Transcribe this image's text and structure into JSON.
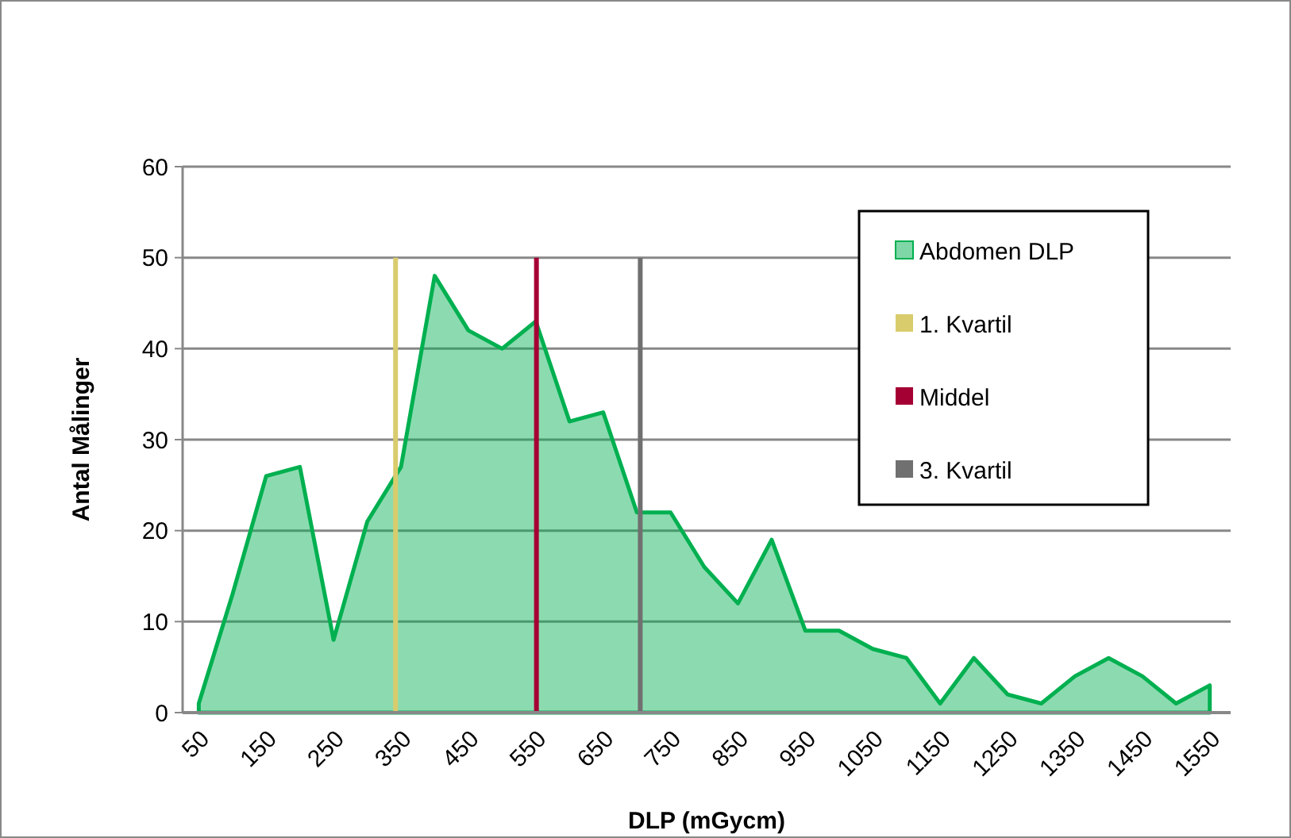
{
  "chart_data": {
    "type": "area",
    "xlabel": "DLP (mGycm)",
    "ylabel": "Antal Målinger",
    "x": [
      50,
      100,
      150,
      200,
      250,
      300,
      350,
      400,
      450,
      500,
      550,
      600,
      650,
      700,
      750,
      800,
      850,
      900,
      950,
      1000,
      1050,
      1100,
      1150,
      1200,
      1250,
      1300,
      1350,
      1400,
      1450,
      1500,
      1550
    ],
    "series": [
      {
        "name": "Abdomen DLP",
        "color": "#00b050",
        "values": [
          1,
          13,
          26,
          27,
          8,
          21,
          27,
          48,
          42,
          40,
          43,
          32,
          33,
          22,
          22,
          16,
          12,
          19,
          9,
          9,
          7,
          6,
          1,
          6,
          2,
          1,
          4,
          6,
          4,
          1,
          3
        ]
      },
      {
        "name": "1. Kvartil",
        "type": "line",
        "color": "#d9cc6c",
        "x": [
          342,
          342
        ],
        "values": [
          0,
          50
        ]
      },
      {
        "name": "Middel",
        "type": "line",
        "color": "#a50034",
        "x": [
          551,
          551
        ],
        "values": [
          0,
          50
        ]
      },
      {
        "name": "3. Kvartil",
        "type": "line",
        "color": "#707070",
        "x": [
          705,
          705
        ],
        "values": [
          0,
          50
        ]
      }
    ],
    "xlim": [
      26,
      1581
    ],
    "xticks": [
      50,
      150,
      250,
      350,
      450,
      550,
      650,
      750,
      850,
      950,
      1050,
      1150,
      1250,
      1350,
      1450,
      1550
    ],
    "ylim": [
      0,
      60
    ],
    "yticks": [
      0,
      10,
      20,
      30,
      40,
      50,
      60
    ],
    "grid": "y",
    "legend": "right"
  }
}
